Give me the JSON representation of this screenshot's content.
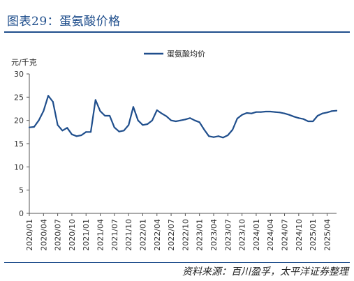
{
  "figure": {
    "title": "图表29：蛋氨酸价格",
    "source": "资料来源：百川盈孚，太平洋证券整理"
  },
  "chart_data": {
    "type": "line",
    "ylabel": "元/千克",
    "ylim": [
      0,
      30
    ],
    "yticks": [
      "0",
      "5",
      "10",
      "15",
      "20",
      "25",
      "30"
    ],
    "xlabel": "",
    "xlim": [
      "2020-01",
      "2025-06"
    ],
    "xticks": [
      "2020/01",
      "2020/04",
      "2020/07",
      "2020/10",
      "2021/01",
      "2021/04",
      "2021/07",
      "2021/10",
      "2022/01",
      "2022/04",
      "2022/07",
      "2022/10",
      "2023/01",
      "2023/04",
      "2023/07",
      "2023/10",
      "2024/01",
      "2024/04",
      "2024/07",
      "2024/10",
      "2025/01",
      "2025/04"
    ],
    "legend_position": "top-center",
    "grid": false,
    "colors": {
      "series": "#1f4e8c"
    },
    "series": [
      {
        "name": "蛋氨酸均价",
        "points": [
          [
            "2020-01",
            18.5
          ],
          [
            "2020-02",
            18.6
          ],
          [
            "2020-03",
            20.0
          ],
          [
            "2020-04",
            22.0
          ],
          [
            "2020-05",
            25.3
          ],
          [
            "2020-06",
            24.0
          ],
          [
            "2020-07",
            19.0
          ],
          [
            "2020-08",
            17.8
          ],
          [
            "2020-09",
            18.4
          ],
          [
            "2020-10",
            17.0
          ],
          [
            "2020-11",
            16.6
          ],
          [
            "2020-12",
            16.8
          ],
          [
            "2021-01",
            17.5
          ],
          [
            "2021-02",
            17.5
          ],
          [
            "2021-03",
            24.4
          ],
          [
            "2021-04",
            22.0
          ],
          [
            "2021-05",
            21.0
          ],
          [
            "2021-06",
            21.0
          ],
          [
            "2021-07",
            18.5
          ],
          [
            "2021-08",
            17.6
          ],
          [
            "2021-09",
            17.8
          ],
          [
            "2021-10",
            19.0
          ],
          [
            "2021-11",
            22.9
          ],
          [
            "2021-12",
            20.0
          ],
          [
            "2022-01",
            19.0
          ],
          [
            "2022-02",
            19.2
          ],
          [
            "2022-03",
            20.0
          ],
          [
            "2022-04",
            22.2
          ],
          [
            "2022-05",
            21.5
          ],
          [
            "2022-06",
            20.9
          ],
          [
            "2022-07",
            20.0
          ],
          [
            "2022-08",
            19.8
          ],
          [
            "2022-09",
            20.0
          ],
          [
            "2022-10",
            20.2
          ],
          [
            "2022-11",
            20.5
          ],
          [
            "2022-12",
            20.0
          ],
          [
            "2023-01",
            19.6
          ],
          [
            "2023-02",
            18.0
          ],
          [
            "2023-03",
            16.6
          ],
          [
            "2023-04",
            16.4
          ],
          [
            "2023-05",
            16.6
          ],
          [
            "2023-06",
            16.3
          ],
          [
            "2023-07",
            16.8
          ],
          [
            "2023-08",
            18.0
          ],
          [
            "2023-09",
            20.4
          ],
          [
            "2023-10",
            21.2
          ],
          [
            "2023-11",
            21.6
          ],
          [
            "2023-12",
            21.5
          ],
          [
            "2024-01",
            21.8
          ],
          [
            "2024-02",
            21.8
          ],
          [
            "2024-03",
            21.9
          ],
          [
            "2024-04",
            21.9
          ],
          [
            "2024-05",
            21.8
          ],
          [
            "2024-06",
            21.7
          ],
          [
            "2024-07",
            21.5
          ],
          [
            "2024-08",
            21.2
          ],
          [
            "2024-09",
            20.8
          ],
          [
            "2024-10",
            20.5
          ],
          [
            "2024-11",
            20.3
          ],
          [
            "2024-12",
            19.8
          ],
          [
            "2025-01",
            19.8
          ],
          [
            "2025-02",
            21.0
          ],
          [
            "2025-03",
            21.5
          ],
          [
            "2025-04",
            21.7
          ],
          [
            "2025-05",
            22.0
          ],
          [
            "2025-06",
            22.1
          ]
        ]
      }
    ]
  }
}
